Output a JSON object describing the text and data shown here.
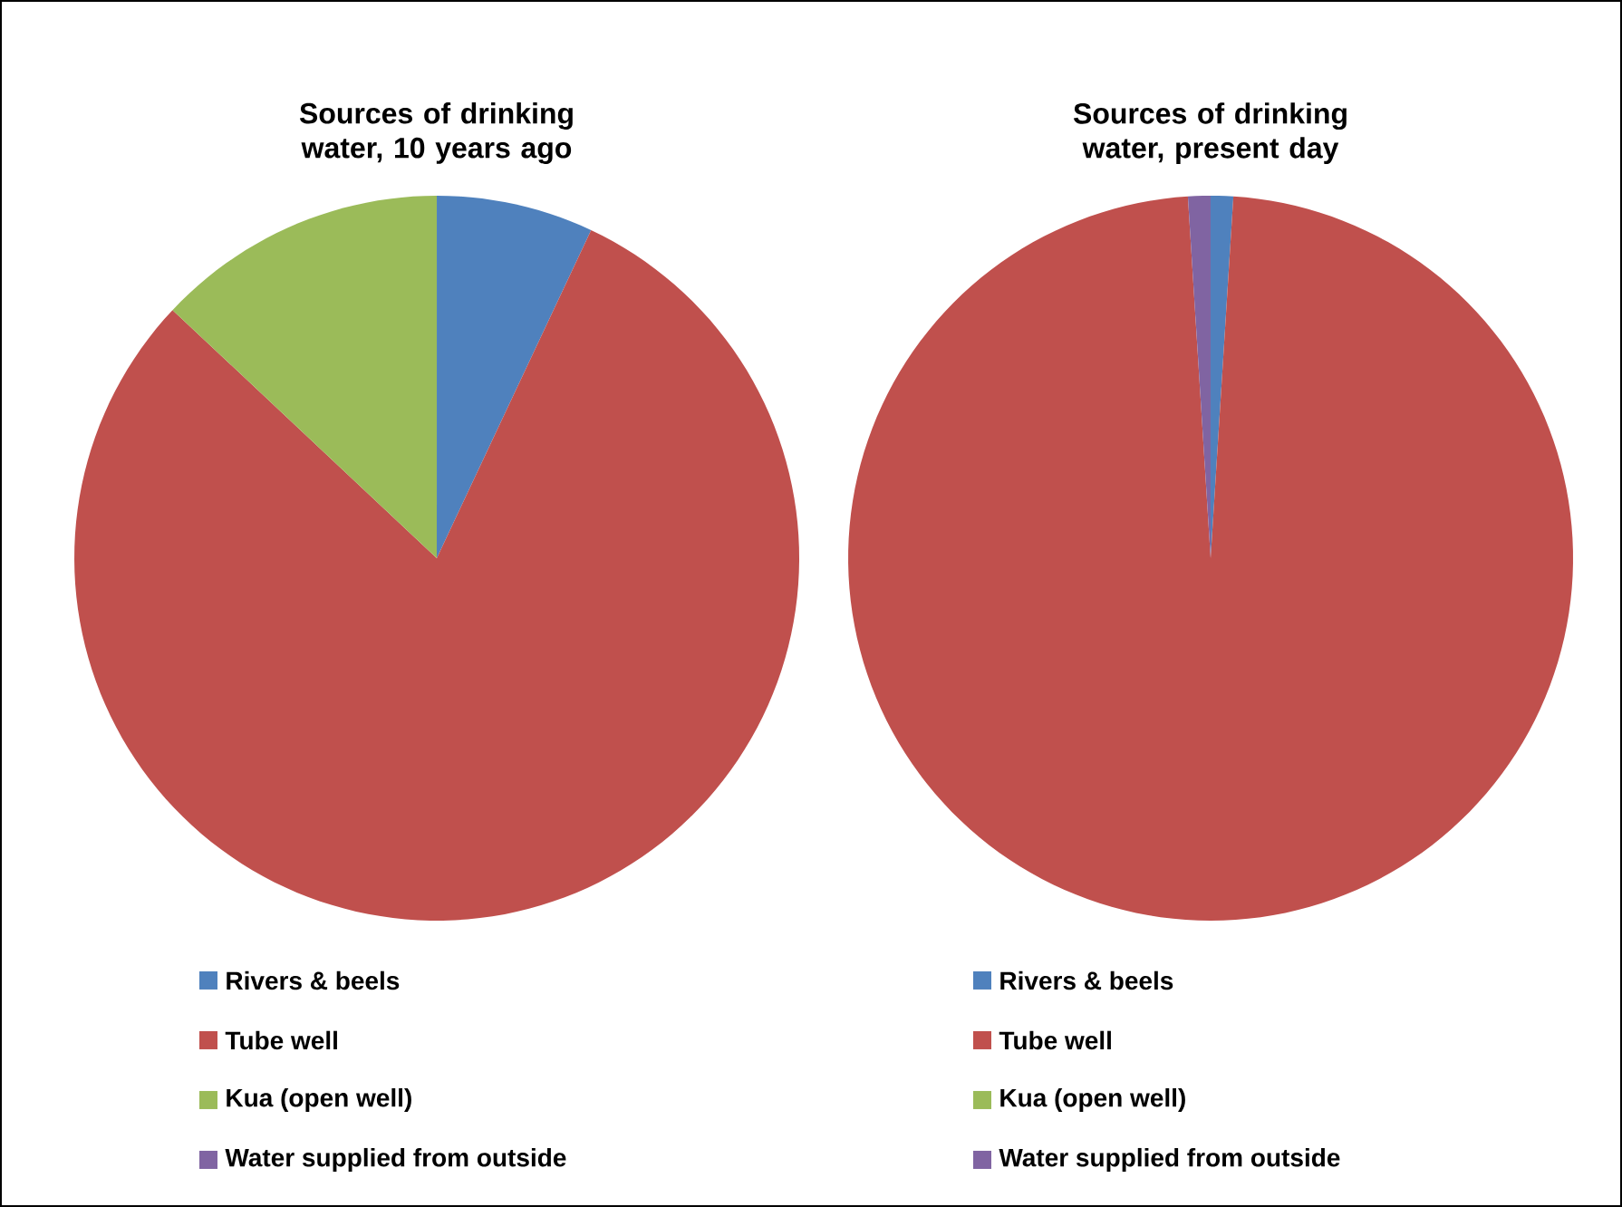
{
  "chart_data": [
    {
      "type": "pie",
      "title": "Sources of drinking water, 10 years ago",
      "categories": [
        "Rivers & beels",
        "Tube well",
        "Kua (open well)",
        "Water supplied from outside"
      ],
      "values": [
        7,
        80,
        13,
        0
      ],
      "colors": [
        "#4f81bd",
        "#c0504d",
        "#9bbb59",
        "#8064a2"
      ],
      "legend": "bottom"
    },
    {
      "type": "pie",
      "title": "Sources of drinking water, present day",
      "categories": [
        "Rivers & beels",
        "Tube well",
        "Kua (open well)",
        "Water supplied from outside"
      ],
      "values": [
        1,
        98,
        0,
        1
      ],
      "colors": [
        "#4f81bd",
        "#c0504d",
        "#9bbb59",
        "#8064a2"
      ],
      "legend": "bottom"
    }
  ]
}
